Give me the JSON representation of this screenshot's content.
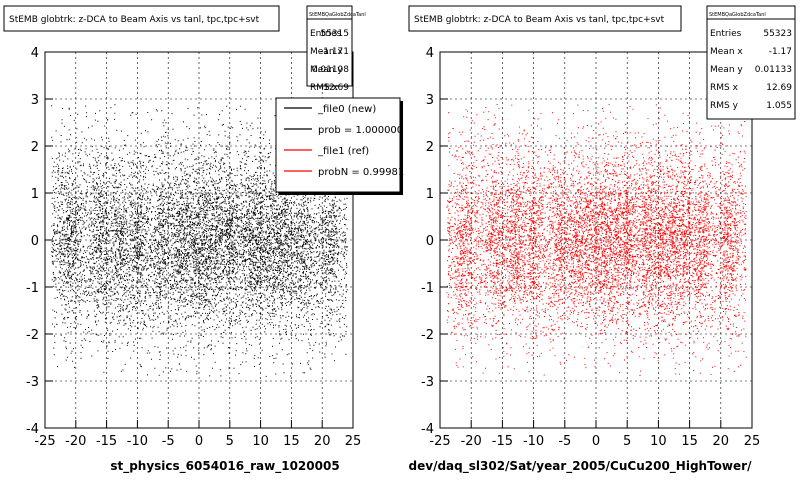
{
  "chart_data": [
    {
      "type": "scatter",
      "title": "StEMB globtrk: z-DCA to Beam Axis vs tanl, tpc,tpc+svt",
      "xlabel": "",
      "ylabel": "",
      "xlim": [
        -25,
        25
      ],
      "ylim": [
        -4,
        4
      ],
      "x_ticks": [
        -25,
        -20,
        -15,
        -10,
        -5,
        0,
        5,
        10,
        15,
        20,
        25
      ],
      "y_ticks": [
        -4,
        -3,
        -2,
        -1,
        0,
        1,
        2,
        3,
        4
      ],
      "grid": true,
      "series": [
        {
          "color": "#000000",
          "point_count_estimate": 55315
        }
      ],
      "stats": {
        "header": "StEMBQaGlobZdcaTanl",
        "rows": [
          {
            "label": "Entries",
            "value": "55315"
          },
          {
            "label": "Mean x",
            "value": "-1.171"
          },
          {
            "label": "Mean y",
            "value": "0.01108"
          },
          {
            "label": "RMS x",
            "value": "12.69"
          }
        ]
      },
      "legend": {
        "position": "right-overlapping",
        "entries": [
          {
            "label": "_file0 (new)",
            "color": "#000000"
          },
          {
            "label": "prob = 1.000000",
            "color": "#000000"
          },
          {
            "label": "_file1 (ref)",
            "color": "#ff0000"
          },
          {
            "label": "probN = 0.99981",
            "color": "#ff0000"
          }
        ]
      },
      "caption": "st_physics_6054016_raw_1020005"
    },
    {
      "type": "scatter",
      "title": "StEMB globtrk: z-DCA to Beam Axis vs tanl, tpc,tpc+svt",
      "xlabel": "",
      "ylabel": "",
      "xlim": [
        -25,
        25
      ],
      "ylim": [
        -4,
        4
      ],
      "x_ticks": [
        -25,
        -20,
        -15,
        -10,
        -5,
        0,
        5,
        10,
        15,
        20,
        25
      ],
      "y_ticks": [
        -4,
        -3,
        -2,
        -1,
        0,
        1,
        2,
        3,
        4
      ],
      "grid": true,
      "series": [
        {
          "color": "#ff0000",
          "point_count_estimate": 55323
        }
      ],
      "stats": {
        "header": "StEMBQaGlobZdcaTanl",
        "rows": [
          {
            "label": "Entries",
            "value": "55323"
          },
          {
            "label": "Mean x",
            "value": "-1.17"
          },
          {
            "label": "Mean y",
            "value": "0.01133"
          },
          {
            "label": "RMS x",
            "value": "12.69"
          },
          {
            "label": "RMS y",
            "value": "1.055"
          }
        ]
      },
      "caption": "dev/daq_sl302/Sat/year_2005/CuCu200_HighTower/"
    }
  ]
}
